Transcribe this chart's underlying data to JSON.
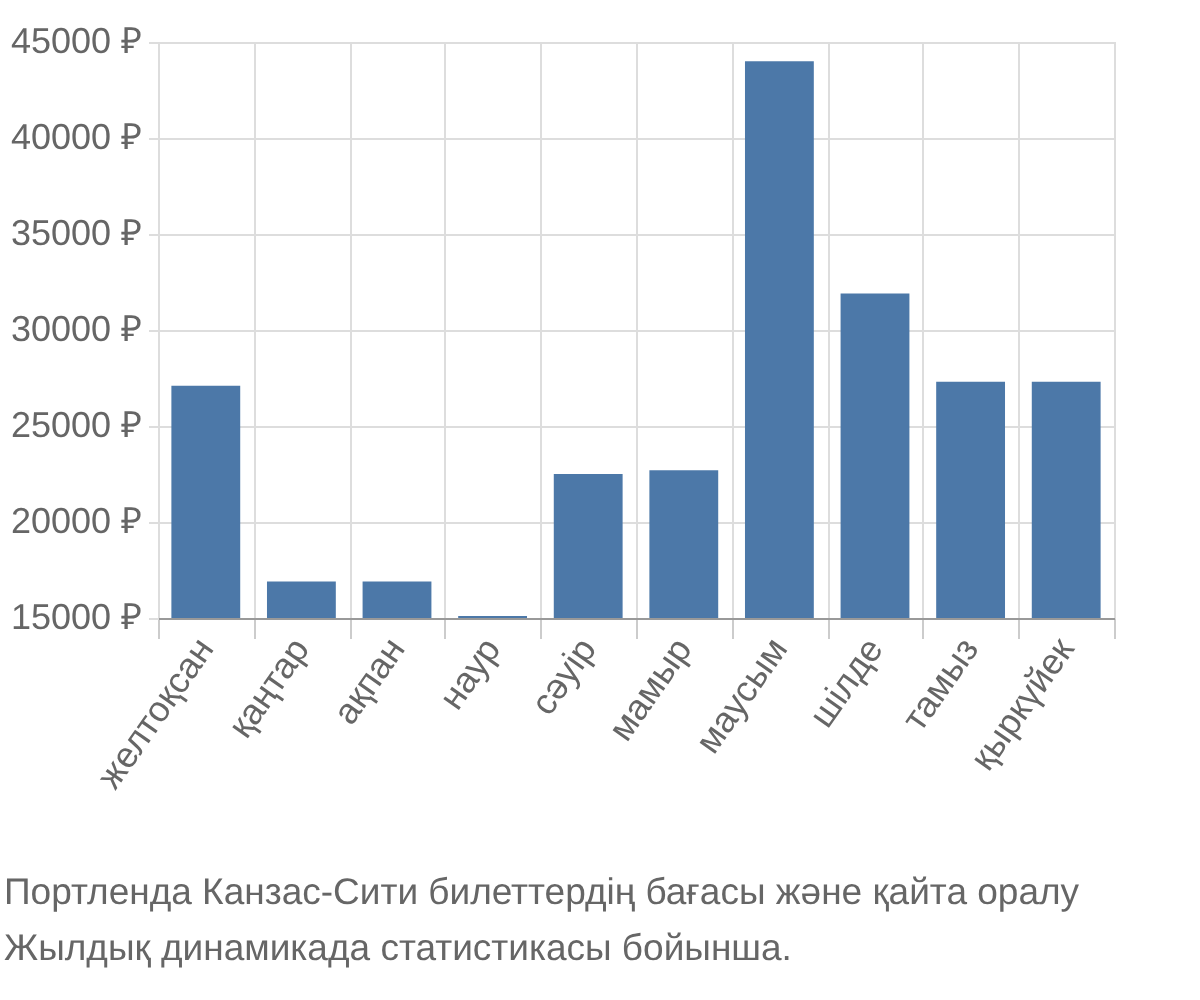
{
  "chart_data": {
    "type": "bar",
    "categories": [
      "желтоқсан",
      "қаңтар",
      "ақпан",
      "наур",
      "сәуір",
      "мамыр",
      "маусым",
      "шілде",
      "тамыз",
      "қыркүйек"
    ],
    "values": [
      27100,
      16900,
      16900,
      15100,
      22500,
      22700,
      44000,
      31900,
      27300,
      27300
    ],
    "color": "#4c78a8",
    "ylim": [
      15000,
      45000
    ],
    "yticks": [
      {
        "value": 15000,
        "label": "15000 ₽"
      },
      {
        "value": 20000,
        "label": "20000 ₽"
      },
      {
        "value": 25000,
        "label": "25000 ₽"
      },
      {
        "value": 30000,
        "label": "30000 ₽"
      },
      {
        "value": 35000,
        "label": "35000 ₽"
      },
      {
        "value": 40000,
        "label": "40000 ₽"
      },
      {
        "value": 45000,
        "label": "45000 ₽"
      }
    ],
    "grid": true,
    "annotations": [
      "Портленда Канзас-Сити билеттердің бағасы және қайта оралу",
      "Жылдық динамикада статистикасы бойынша."
    ]
  }
}
